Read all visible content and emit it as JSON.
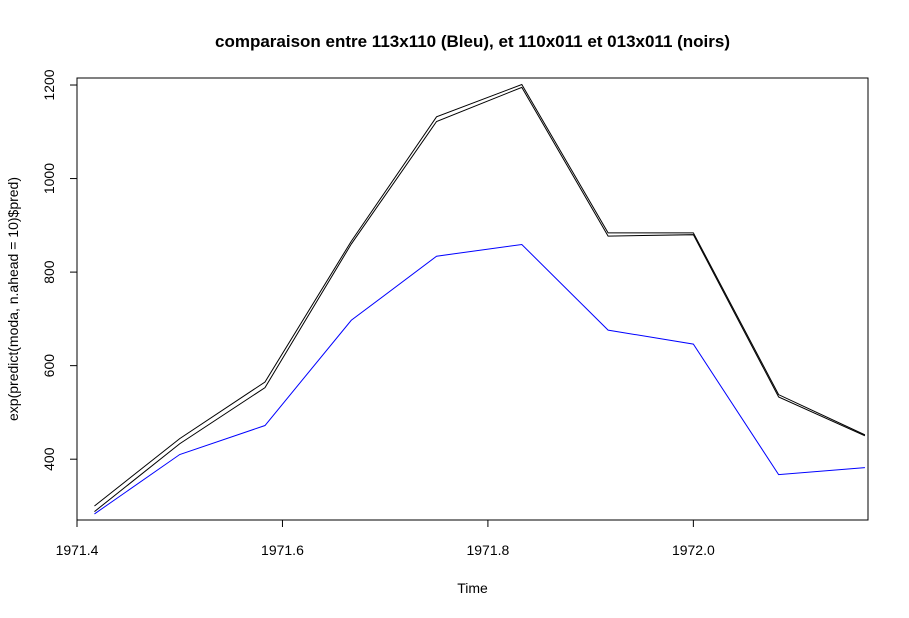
{
  "chart_data": {
    "type": "line",
    "title": "comparaison entre 113x110 (Bleu), et 110x011 et 013x011 (noirs)",
    "xlabel": "Time",
    "ylabel": "exp(predict(moda, n.ahead = 10)$pred)",
    "xlim": [
      1971.4,
      1972.17
    ],
    "ylim": [
      270,
      1215
    ],
    "xticks": [
      1971.4,
      1971.6,
      1971.8,
      1972.0
    ],
    "xtick_labels": [
      "1971.4",
      "1971.6",
      "1971.8",
      "1972.0"
    ],
    "yticks": [
      400,
      600,
      800,
      1000,
      1200
    ],
    "ytick_labels": [
      "400",
      "600",
      "800",
      "1000",
      "1200"
    ],
    "x": [
      1971.417,
      1971.5,
      1971.583,
      1971.667,
      1971.75,
      1971.833,
      1971.917,
      1972.0,
      1972.083,
      1972.167
    ],
    "series": [
      {
        "color": "#0000ff",
        "values": [
          283,
          410,
          472,
          697,
          834,
          859,
          676,
          646,
          367,
          382
        ]
      },
      {
        "color": "#000000",
        "values": [
          300,
          444,
          565,
          866,
          1132,
          1201,
          884,
          884,
          538,
          452
        ]
      },
      {
        "color": "#000000",
        "values": [
          288,
          433,
          553,
          860,
          1122,
          1195,
          877,
          880,
          533,
          450
        ]
      }
    ],
    "grid": false
  }
}
